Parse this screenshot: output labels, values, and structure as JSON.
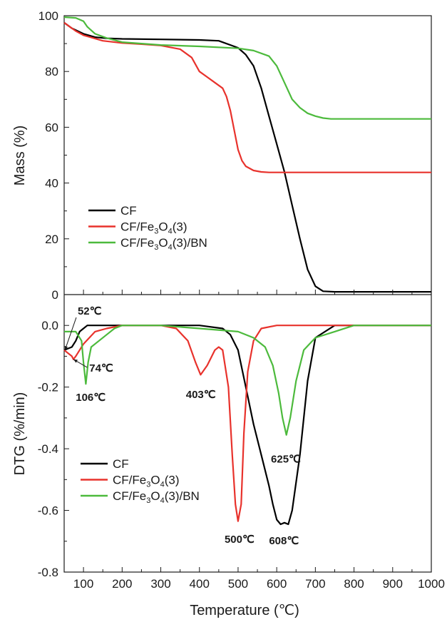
{
  "chart_data": {
    "type": "line",
    "x_axis": {
      "label": "Temperature (℃)",
      "range": [
        50,
        1000
      ],
      "ticks": [
        "100",
        "200",
        "300",
        "400",
        "500",
        "600",
        "700",
        "800",
        "900",
        "1000"
      ]
    },
    "colors": {
      "CF": "#000000",
      "CF_Fe3O4_3": "#e8322c",
      "CF_Fe3O4_3_BN": "#4cba3c"
    },
    "legend_placement": "lower-left",
    "legend": [
      {
        "key": "CF",
        "sub": "",
        "parts": [
          "CF"
        ]
      },
      {
        "key": "CF_Fe3O4_3",
        "sub": "3,4",
        "parts": [
          "CF/Fe",
          "3",
          "O",
          "4",
          "(3)"
        ]
      },
      {
        "key": "CF_Fe3O4_3_BN",
        "sub": "3,4",
        "parts": [
          "CF/Fe",
          "3",
          "O",
          "4",
          "(3)/BN"
        ]
      }
    ],
    "panels": [
      {
        "id": "mass",
        "ylabel": "Mass (%)",
        "ylim": [
          0,
          100
        ],
        "y_ticks": [
          "0",
          "20",
          "40",
          "60",
          "80",
          "100"
        ],
        "series": [
          {
            "key": "CF",
            "x": [
              50,
              70,
              100,
              130,
              160,
              200,
              300,
              400,
              450,
              500,
              520,
              540,
              560,
              580,
              600,
              620,
              640,
              660,
              680,
              700,
              720,
              750,
              800,
              1000
            ],
            "y": [
              97.5,
              95.5,
              93.5,
              92.3,
              91.9,
              91.7,
              91.5,
              91.3,
              91.0,
              88.5,
              86.0,
              82.0,
              74.0,
              64.0,
              54.0,
              44.0,
              32.0,
              20.0,
              9.0,
              3.0,
              1.2,
              1.0,
              1.0,
              1.0
            ]
          },
          {
            "key": "CF_Fe3O4_3",
            "x": [
              50,
              80,
              100,
              150,
              200,
              250,
              300,
              350,
              380,
              400,
              420,
              440,
              460,
              470,
              480,
              490,
              500,
              510,
              520,
              540,
              560,
              580,
              600,
              1000
            ],
            "y": [
              97.5,
              94.5,
              93.0,
              91.0,
              90.2,
              89.8,
              89.3,
              88.0,
              85.0,
              80.0,
              78.0,
              76.0,
              74.0,
              71.0,
              66.0,
              59.0,
              52.0,
              48.0,
              46.0,
              44.5,
              44.0,
              43.8,
              43.8,
              43.8
            ]
          },
          {
            "key": "CF_Fe3O4_3_BN",
            "x": [
              50,
              80,
              100,
              110,
              130,
              160,
              200,
              300,
              400,
              500,
              540,
              580,
              600,
              620,
              640,
              660,
              680,
              700,
              720,
              740,
              800,
              1000
            ],
            "y": [
              99.5,
              99.2,
              98.0,
              96.0,
              93.5,
              92.0,
              90.5,
              89.5,
              89.0,
              88.3,
              87.5,
              85.5,
              82.0,
              76.0,
              70.0,
              67.0,
              65.0,
              64.0,
              63.3,
              63.0,
              63.0,
              63.0
            ]
          }
        ]
      },
      {
        "id": "dtg",
        "ylabel": "DTG (%/min)",
        "ylim": [
          -0.8,
          0.1
        ],
        "y_ticks": [
          "-0.8",
          "-0.6",
          "-0.4",
          "-0.2",
          "0.0"
        ],
        "series": [
          {
            "key": "CF",
            "x": [
              50,
              60,
              70,
              80,
              90,
              100,
              110,
              120,
              150,
              200,
              300,
              400,
              460,
              480,
              500,
              520,
              540,
              560,
              580,
              590,
              600,
              610,
              620,
              630,
              640,
              660,
              680,
              700,
              750,
              800,
              1000
            ],
            "y": [
              -0.08,
              -0.075,
              -0.07,
              -0.05,
              -0.02,
              -0.01,
              0.0,
              0.0,
              0.0,
              0.0,
              0.0,
              0.0,
              -0.01,
              -0.03,
              -0.08,
              -0.2,
              -0.32,
              -0.42,
              -0.52,
              -0.58,
              -0.63,
              -0.645,
              -0.64,
              -0.645,
              -0.6,
              -0.42,
              -0.18,
              -0.04,
              0.0,
              0.0,
              0.0
            ]
          },
          {
            "key": "CF_Fe3O4_3",
            "x": [
              50,
              70,
              74,
              80,
              100,
              130,
              160,
              200,
              300,
              340,
              370,
              390,
              403,
              420,
              440,
              450,
              460,
              475,
              485,
              493,
              500,
              508,
              515,
              525,
              540,
              560,
              600,
              1000
            ],
            "y": [
              -0.08,
              -0.1,
              -0.11,
              -0.1,
              -0.06,
              -0.02,
              -0.01,
              0.0,
              0.0,
              -0.01,
              -0.05,
              -0.12,
              -0.16,
              -0.13,
              -0.08,
              -0.07,
              -0.08,
              -0.2,
              -0.42,
              -0.58,
              -0.635,
              -0.58,
              -0.35,
              -0.15,
              -0.05,
              -0.01,
              0.0,
              0.0
            ]
          },
          {
            "key": "CF_Fe3O4_3_BN",
            "x": [
              50,
              80,
              95,
              100,
              106,
              112,
              120,
              140,
              160,
              180,
              200,
              300,
              400,
              500,
              540,
              570,
              590,
              605,
              615,
              625,
              635,
              650,
              670,
              700,
              750,
              800,
              1000
            ],
            "y": [
              -0.02,
              -0.02,
              -0.05,
              -0.12,
              -0.19,
              -0.12,
              -0.07,
              -0.05,
              -0.03,
              -0.01,
              0.0,
              0.0,
              -0.01,
              -0.02,
              -0.04,
              -0.07,
              -0.13,
              -0.22,
              -0.3,
              -0.355,
              -0.3,
              -0.18,
              -0.08,
              -0.04,
              -0.02,
              0.0,
              0.0
            ]
          }
        ],
        "annotations": [
          {
            "label": "52℃",
            "x": 52,
            "y": -0.08,
            "arrow": true,
            "text_x": 85,
            "text_y": 0.035
          },
          {
            "label": "74℃",
            "x": 74,
            "y": -0.11,
            "arrow": true,
            "text_x": 115,
            "text_y": -0.15
          },
          {
            "label": "106℃",
            "x": 106,
            "y": -0.19,
            "arrow": false,
            "text_x": 80,
            "text_y": -0.245
          },
          {
            "label": "403℃",
            "x": 403,
            "y": -0.16,
            "arrow": false,
            "text_x": 365,
            "text_y": -0.235
          },
          {
            "label": "625℃",
            "x": 625,
            "y": -0.355,
            "arrow": false,
            "text_x": 585,
            "text_y": -0.445
          },
          {
            "label": "500℃",
            "x": 500,
            "y": -0.635,
            "arrow": false,
            "text_x": 465,
            "text_y": -0.705
          },
          {
            "label": "608℃",
            "x": 608,
            "y": -0.645,
            "arrow": false,
            "text_x": 580,
            "text_y": -0.71
          }
        ]
      }
    ]
  }
}
